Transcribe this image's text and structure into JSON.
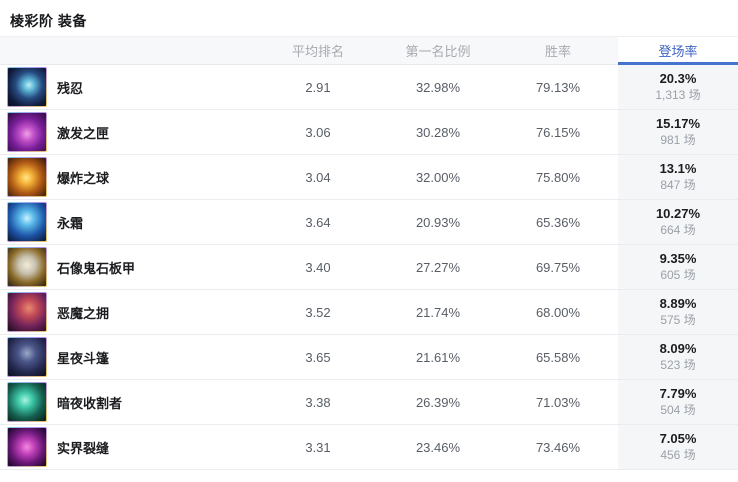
{
  "title": "棱彩阶 装备",
  "table": {
    "columns": [
      {
        "label": "平均排名"
      },
      {
        "label": "第一名比例"
      },
      {
        "label": "胜率"
      },
      {
        "label": "登场率",
        "active": true
      }
    ],
    "rows": [
      {
        "name": "残忍",
        "icon": "cruelty-icon",
        "avg_rank": "2.91",
        "first_place_rate": "32.98%",
        "win_rate": "79.13%",
        "pick_rate": "20.3%",
        "games": "1,313 场"
      },
      {
        "name": "激发之匣",
        "icon": "spark-casket-icon",
        "avg_rank": "3.06",
        "first_place_rate": "30.28%",
        "win_rate": "76.15%",
        "pick_rate": "15.17%",
        "games": "981 场"
      },
      {
        "name": "爆炸之球",
        "icon": "explosive-orb-icon",
        "avg_rank": "3.04",
        "first_place_rate": "32.00%",
        "win_rate": "75.80%",
        "pick_rate": "13.1%",
        "games": "847 场"
      },
      {
        "name": "永霜",
        "icon": "everfrost-icon",
        "avg_rank": "3.64",
        "first_place_rate": "20.93%",
        "win_rate": "65.36%",
        "pick_rate": "10.27%",
        "games": "664 场"
      },
      {
        "name": "石像鬼石板甲",
        "icon": "gargoyle-stoneplate-icon",
        "avg_rank": "3.40",
        "first_place_rate": "27.27%",
        "win_rate": "69.75%",
        "pick_rate": "9.35%",
        "games": "605 场"
      },
      {
        "name": "恶魔之拥",
        "icon": "demonic-embrace-icon",
        "avg_rank": "3.52",
        "first_place_rate": "21.74%",
        "win_rate": "68.00%",
        "pick_rate": "8.89%",
        "games": "575 场"
      },
      {
        "name": "星夜斗篷",
        "icon": "starry-cloak-icon",
        "avg_rank": "3.65",
        "first_place_rate": "21.61%",
        "win_rate": "65.58%",
        "pick_rate": "8.09%",
        "games": "523 场"
      },
      {
        "name": "暗夜收割者",
        "icon": "night-harvester-icon",
        "avg_rank": "3.38",
        "first_place_rate": "26.39%",
        "win_rate": "71.03%",
        "pick_rate": "7.79%",
        "games": "504 场"
      },
      {
        "name": "实界裂缝",
        "icon": "reality-rift-icon",
        "avg_rank": "3.31",
        "first_place_rate": "23.46%",
        "win_rate": "73.46%",
        "pick_rate": "7.05%",
        "games": "456 场"
      }
    ]
  },
  "colors": {
    "accent_blue": "#4573cd",
    "active_header_text": "#3e63c4",
    "pick_rate_column_bg": "#f5f6f8",
    "header_bg": "#f7f8f9"
  }
}
